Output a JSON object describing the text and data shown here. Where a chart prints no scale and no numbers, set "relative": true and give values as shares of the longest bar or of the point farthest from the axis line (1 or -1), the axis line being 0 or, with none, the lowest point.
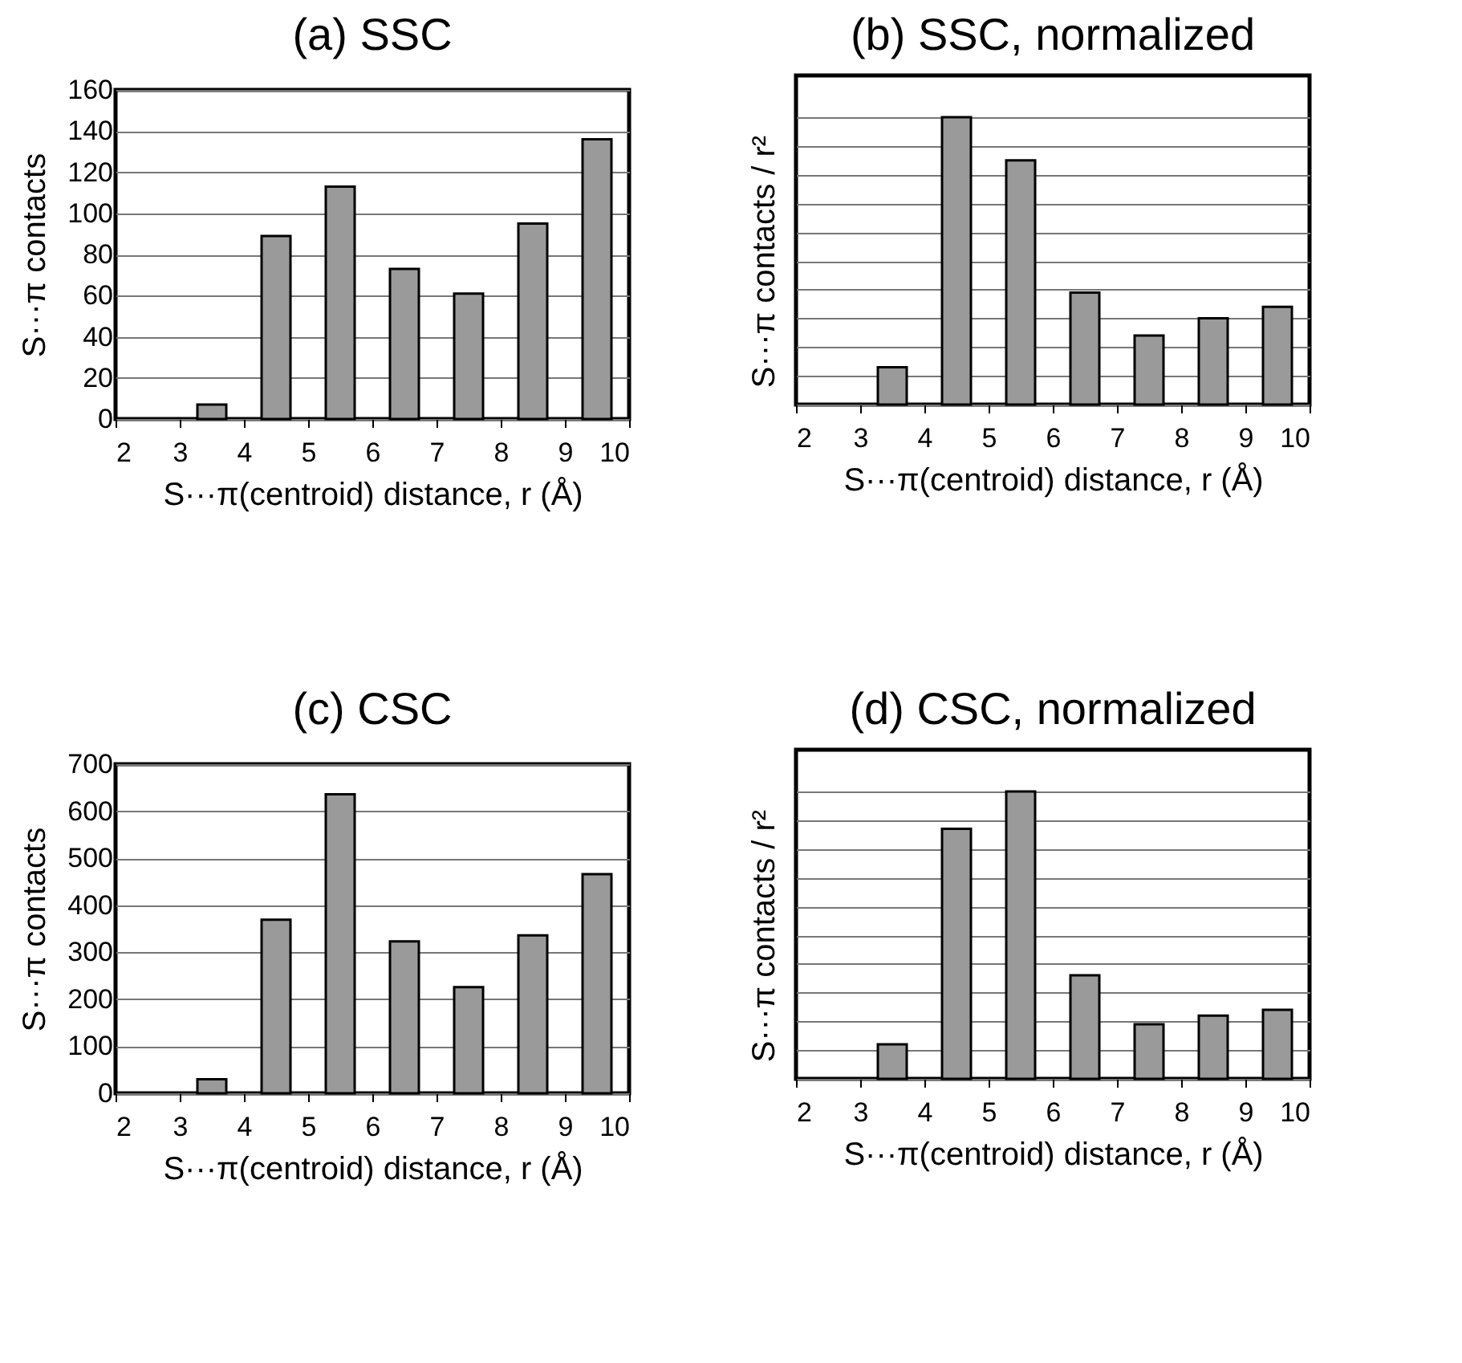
{
  "chart_data": [
    {
      "type": "bar",
      "title": "(a) SSC",
      "xlabel": "S···π(centroid) distance, r (Å)",
      "ylabel": "S···π contacts",
      "x": [
        3.5,
        4.5,
        5.5,
        6.5,
        7.5,
        8.5,
        9.5
      ],
      "values": [
        7,
        89,
        113,
        73,
        61,
        95,
        136
      ],
      "color": "#9a9a9a",
      "xlim": [
        2,
        10
      ],
      "xticks": [
        2,
        3,
        4,
        5,
        6,
        7,
        8,
        9,
        10
      ],
      "ylim": [
        0,
        160
      ],
      "yticks": [
        0,
        20,
        40,
        60,
        80,
        100,
        120,
        140,
        160
      ],
      "grid": "y"
    },
    {
      "type": "bar",
      "title": "(b) SSC, normalized",
      "xlabel": "S···π(centroid) distance, r (Å)",
      "ylabel": "S···π contacts / r²",
      "x": [
        3.5,
        4.5,
        5.5,
        6.5,
        7.5,
        8.5,
        9.5
      ],
      "values": [
        0.13,
        1,
        0.85,
        0.39,
        0.24,
        0.3,
        0.34
      ],
      "relative": true,
      "color": "#9a9a9a",
      "xlim": [
        2,
        10
      ],
      "xticks": [
        2,
        3,
        4,
        5,
        6,
        7,
        8,
        9,
        10
      ],
      "grid": "y"
    },
    {
      "type": "bar",
      "title": "(c) CSC",
      "xlabel": "S···π(centroid) distance, r (Å)",
      "ylabel": "S···π contacts",
      "x": [
        3.5,
        4.5,
        5.5,
        6.5,
        7.5,
        8.5,
        9.5
      ],
      "values": [
        30,
        369,
        636,
        323,
        226,
        336,
        466
      ],
      "color": "#9a9a9a",
      "xlim": [
        2,
        10
      ],
      "xticks": [
        2,
        3,
        4,
        5,
        6,
        7,
        8,
        9,
        10
      ],
      "ylim": [
        0,
        700
      ],
      "yticks": [
        0,
        100,
        200,
        300,
        400,
        500,
        600,
        700
      ],
      "grid": "y"
    },
    {
      "type": "bar",
      "title": "(d) CSC, normalized",
      "xlabel": "S···π(centroid) distance, r (Å)",
      "ylabel": "S···π contacts / r²",
      "x": [
        3.5,
        4.5,
        5.5,
        6.5,
        7.5,
        8.5,
        9.5
      ],
      "values": [
        0.12,
        0.87,
        1,
        0.36,
        0.19,
        0.22,
        0.24
      ],
      "relative": true,
      "color": "#9a9a9a",
      "xlim": [
        2,
        10
      ],
      "xticks": [
        2,
        3,
        4,
        5,
        6,
        7,
        8,
        9,
        10
      ],
      "grid": "y"
    }
  ]
}
